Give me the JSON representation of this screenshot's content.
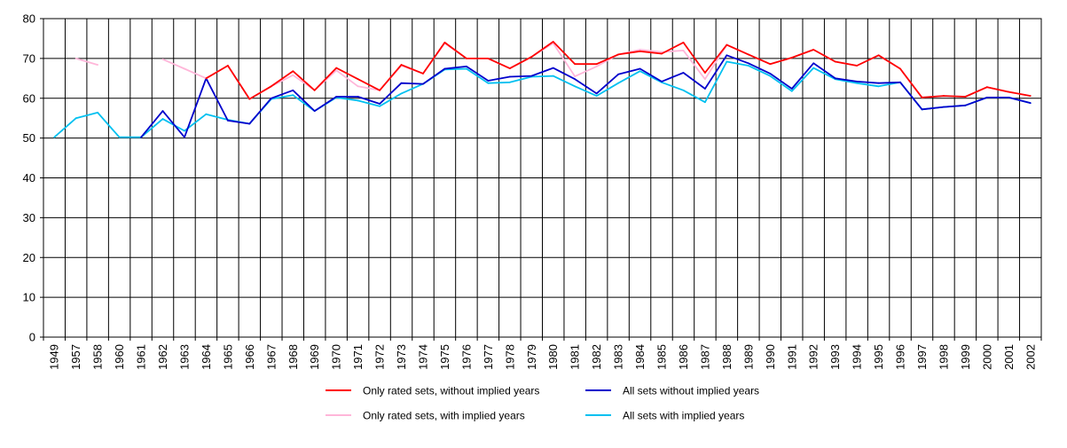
{
  "chart_data": {
    "type": "line",
    "title": "",
    "xlabel": "",
    "ylabel": "",
    "ylim": [
      0,
      80
    ],
    "yticks": [
      0,
      10,
      20,
      30,
      40,
      50,
      60,
      70,
      80
    ],
    "grid": true,
    "legend_position": "bottom",
    "categories": [
      "1949",
      "1957",
      "1958",
      "1960",
      "1961",
      "1962",
      "1963",
      "1964",
      "1965",
      "1966",
      "1967",
      "1968",
      "1969",
      "1970",
      "1971",
      "1972",
      "1973",
      "1974",
      "1975",
      "1976",
      "1977",
      "1978",
      "1979",
      "1980",
      "1981",
      "1982",
      "1983",
      "1984",
      "1985",
      "1986",
      "1987",
      "1988",
      "1989",
      "1990",
      "1991",
      "1992",
      "1993",
      "1994",
      "1995",
      "1996",
      "1997",
      "1998",
      "1999",
      "2000",
      "2001",
      "2002"
    ],
    "series": [
      {
        "name": "Only rated sets, without implied years",
        "color": "#ff0000",
        "values": [
          null,
          null,
          null,
          null,
          null,
          null,
          null,
          65,
          68.2,
          59.8,
          63,
          66.8,
          62,
          67.6,
          64.8,
          62,
          68.4,
          66.2,
          74,
          70,
          70,
          67.5,
          70.4,
          74.2,
          68.6,
          68.6,
          71,
          71.8,
          71.2,
          74,
          66.4,
          73.4,
          71,
          68.6,
          70.2,
          72.2,
          69.2,
          68.2,
          70.8,
          67.4,
          60.2,
          60.6,
          60.4,
          62.8,
          61.6,
          60.6
        ]
      },
      {
        "name": "Only rated sets, with implied years",
        "color": "#ffb6d9",
        "values": [
          null,
          70,
          68.4,
          null,
          null,
          69.8,
          67.4,
          65,
          68.2,
          59.8,
          63,
          65.8,
          62,
          67,
          63,
          62,
          68.2,
          66.2,
          73.8,
          70,
          70,
          67.5,
          70.4,
          73.8,
          65.5,
          68,
          71,
          72.2,
          71.6,
          72,
          64.8,
          73.4,
          71,
          68.6,
          70.2,
          72.2,
          69.2,
          68.2,
          70.8,
          67.4,
          60.2,
          60.6,
          60.4,
          62.8,
          61.6,
          60.6
        ]
      },
      {
        "name": "All sets without implied years",
        "color": "#0000cc",
        "values": [
          null,
          null,
          null,
          null,
          50.2,
          56.8,
          50.2,
          65,
          54.4,
          53.6,
          60,
          62,
          56.8,
          60.4,
          60.4,
          58.6,
          63.8,
          63.6,
          67.4,
          68,
          64.4,
          65.4,
          65.6,
          67.6,
          64.8,
          61.2,
          66,
          67.4,
          64.2,
          66.4,
          62.4,
          70.8,
          68.8,
          66.2,
          62.4,
          68.8,
          65,
          64.2,
          63.8,
          64,
          57.2,
          57.8,
          58.2,
          60.2,
          60.2,
          58.8
        ]
      },
      {
        "name": "All sets with implied years",
        "color": "#00c0f0",
        "values": [
          50.2,
          55,
          56.4,
          50.2,
          50.2,
          54.8,
          51.8,
          56,
          54.6,
          53.6,
          59.8,
          60.8,
          56.8,
          60.2,
          59.4,
          58,
          61.2,
          63.6,
          67.2,
          67.4,
          63.8,
          64,
          65.4,
          65.6,
          63,
          60.6,
          63.8,
          66.8,
          64,
          62,
          59,
          69.2,
          68.2,
          65.6,
          61.8,
          67.6,
          64.8,
          63.8,
          63,
          64,
          57.2,
          57.8,
          58.2,
          60.2,
          60.2,
          58.8
        ]
      }
    ]
  }
}
